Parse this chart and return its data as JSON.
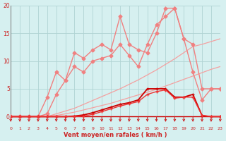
{
  "title": "Vent moyen/en rafales ( km/h )",
  "bg_color": "#d6f0f0",
  "grid_color": "#b0d4d4",
  "x_values": [
    0,
    1,
    2,
    3,
    4,
    5,
    6,
    7,
    8,
    9,
    10,
    11,
    12,
    13,
    14,
    15,
    16,
    17,
    18,
    19,
    20,
    21,
    22,
    23
  ],
  "ylim": [
    -0.5,
    20
  ],
  "xlim": [
    0,
    23
  ],
  "yticks": [
    0,
    5,
    10,
    15,
    20
  ],
  "xticks": [
    0,
    1,
    2,
    3,
    4,
    5,
    6,
    7,
    8,
    9,
    10,
    11,
    12,
    13,
    14,
    15,
    16,
    17,
    18,
    19,
    20,
    21,
    22,
    23
  ],
  "line_jagged1": {
    "y": [
      0,
      0,
      0,
      0,
      3.5,
      8,
      6.5,
      11.5,
      10.5,
      12,
      13,
      12,
      18,
      13,
      12,
      11.5,
      15,
      19.5,
      19.5,
      14,
      13,
      5,
      5,
      5
    ],
    "color": "#f08080",
    "lw": 1.0,
    "marker": "D",
    "ms": 2.5,
    "linestyle": "-"
  },
  "line_jagged2": {
    "y": [
      0,
      0,
      0,
      0,
      0.5,
      4,
      6.5,
      9,
      8,
      10,
      10.5,
      11,
      13,
      11,
      9,
      13,
      16.5,
      18,
      19.5,
      14,
      8,
      3,
      5,
      5
    ],
    "color": "#f08080",
    "lw": 1.0,
    "marker": "D",
    "ms": 2.5,
    "linestyle": "-"
  },
  "line_diag1": {
    "y": [
      0,
      0,
      0,
      0,
      0,
      0.5,
      1.0,
      1.5,
      2.2,
      2.9,
      3.6,
      4.3,
      5.0,
      5.8,
      6.6,
      7.5,
      8.4,
      9.4,
      10.4,
      11.5,
      12.6,
      13.0,
      13.5,
      14.0
    ],
    "color": "#f4a0a0",
    "lw": 0.9
  },
  "line_diag2": {
    "y": [
      0,
      0,
      0,
      0,
      0,
      0.2,
      0.5,
      0.8,
      1.2,
      1.6,
      2.0,
      2.4,
      2.9,
      3.4,
      3.9,
      4.4,
      4.9,
      5.5,
      6.1,
      6.7,
      7.3,
      7.9,
      8.5,
      9.0
    ],
    "color": "#f4a0a0",
    "lw": 0.9
  },
  "line_red1": {
    "y": [
      0,
      0,
      0,
      0,
      0,
      0,
      0,
      0.1,
      0.3,
      0.7,
      1.2,
      1.7,
      2.2,
      2.5,
      3.0,
      5.0,
      5.0,
      5.0,
      3.5,
      3.5,
      4.0,
      0.2,
      0,
      0
    ],
    "color": "#cc0000",
    "lw": 1.3,
    "marker": "+",
    "ms": 3.5,
    "linestyle": "-"
  },
  "line_red2": {
    "y": [
      0,
      0,
      0,
      0,
      0,
      0,
      0,
      0,
      0.1,
      0.4,
      0.9,
      1.4,
      1.9,
      2.3,
      2.7,
      4.0,
      4.5,
      4.8,
      3.3,
      3.5,
      3.5,
      0.2,
      0.0,
      0
    ],
    "color": "#ee3333",
    "lw": 1.0,
    "marker": "+",
    "ms": 3.0,
    "linestyle": "-"
  },
  "line_zero": {
    "y": [
      0,
      0,
      0,
      0,
      0,
      0,
      0,
      0,
      0,
      0,
      0,
      0,
      0,
      0,
      0,
      0,
      0,
      0,
      0,
      0,
      0,
      0,
      0,
      0
    ],
    "color": "#cc0000",
    "lw": 1.0
  },
  "arrow_color": "#cc2222",
  "tick_color": "#cc2222",
  "label_color": "#cc2222",
  "ytick_color": "#cc2222",
  "spine_color": "#888888"
}
